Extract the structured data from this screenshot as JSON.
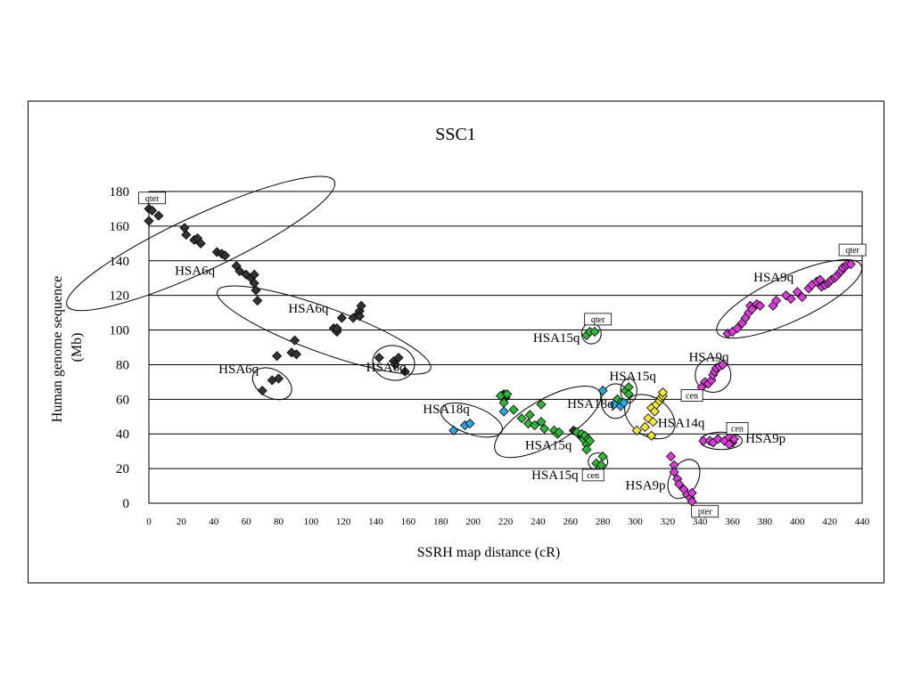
{
  "chart_data": {
    "type": "scatter",
    "title": "SSC1",
    "xlabel": "SSRH map distance (cR)",
    "ylabel": [
      "Human genome sequence",
      "(Mb)"
    ],
    "xlim": [
      0,
      440
    ],
    "ylim": [
      0,
      180
    ],
    "xticks": [
      0,
      20,
      40,
      60,
      80,
      100,
      120,
      140,
      160,
      180,
      200,
      220,
      240,
      260,
      280,
      300,
      320,
      340,
      360,
      380,
      400,
      420,
      440
    ],
    "yticks": [
      0,
      20,
      40,
      60,
      80,
      100,
      120,
      140,
      160,
      180
    ],
    "grid": "horizontal",
    "legend": "none",
    "series": [
      {
        "color": "#333333",
        "points": [
          [
            0,
            170
          ],
          [
            0,
            163
          ],
          [
            2,
            169
          ],
          [
            6,
            166
          ],
          [
            22,
            159
          ],
          [
            23,
            155
          ],
          [
            28,
            152
          ],
          [
            30,
            153
          ],
          [
            32,
            150
          ],
          [
            42,
            145
          ],
          [
            45,
            144
          ],
          [
            47,
            143
          ],
          [
            54,
            137
          ],
          [
            56,
            134
          ],
          [
            60,
            132
          ],
          [
            63,
            130
          ],
          [
            65,
            132
          ],
          [
            65,
            127
          ],
          [
            66,
            123
          ],
          [
            67,
            117
          ],
          [
            79,
            85
          ],
          [
            88,
            87
          ],
          [
            90,
            94
          ],
          [
            91,
            86
          ],
          [
            114,
            101
          ],
          [
            116,
            99
          ],
          [
            116,
            101
          ],
          [
            119,
            107
          ],
          [
            126,
            107
          ],
          [
            129,
            109
          ],
          [
            130,
            111
          ],
          [
            131,
            114
          ],
          [
            130,
            108
          ],
          [
            70,
            65
          ],
          [
            76,
            71
          ],
          [
            80,
            72
          ],
          [
            142,
            84
          ],
          [
            151,
            82
          ],
          [
            152,
            80
          ],
          [
            154,
            84
          ],
          [
            158,
            76
          ],
          [
            219,
            63
          ],
          [
            220,
            61
          ],
          [
            262,
            42
          ],
          [
            265,
            40
          ]
        ]
      },
      {
        "color": "#32b33a",
        "points": [
          [
            217,
            62
          ],
          [
            219,
            58
          ],
          [
            221,
            63
          ],
          [
            225,
            54
          ],
          [
            230,
            49
          ],
          [
            234,
            46
          ],
          [
            235,
            51
          ],
          [
            238,
            45
          ],
          [
            242,
            47
          ],
          [
            242,
            57
          ],
          [
            244,
            43
          ],
          [
            250,
            42
          ],
          [
            252,
            40
          ],
          [
            253,
            41
          ],
          [
            264,
            41
          ],
          [
            267,
            40
          ],
          [
            268,
            37
          ],
          [
            269,
            39
          ],
          [
            270,
            34
          ],
          [
            270,
            31
          ],
          [
            271,
            37
          ],
          [
            272,
            36
          ],
          [
            270,
            97
          ],
          [
            272,
            99
          ],
          [
            275,
            99
          ],
          [
            276,
            23
          ],
          [
            279,
            22
          ],
          [
            280,
            27
          ],
          [
            289,
            60
          ],
          [
            291,
            58
          ],
          [
            294,
            65
          ],
          [
            296,
            67
          ],
          [
            296,
            63
          ]
        ]
      },
      {
        "color": "#29a9e0",
        "points": [
          [
            188,
            42
          ],
          [
            195,
            45
          ],
          [
            198,
            46
          ],
          [
            219,
            53
          ],
          [
            280,
            65
          ],
          [
            287,
            57
          ],
          [
            291,
            56
          ],
          [
            293,
            58
          ]
        ]
      },
      {
        "color": "#f2e73d",
        "points": [
          [
            301,
            42
          ],
          [
            306,
            44
          ],
          [
            308,
            49
          ],
          [
            310,
            55
          ],
          [
            310,
            39
          ],
          [
            311,
            47
          ],
          [
            312,
            53
          ],
          [
            313,
            57
          ],
          [
            315,
            59
          ],
          [
            316,
            61
          ],
          [
            317,
            62
          ],
          [
            317,
            64
          ]
        ]
      },
      {
        "color": "#d63ed6",
        "points": [
          [
            322,
            27
          ],
          [
            324,
            22
          ],
          [
            324,
            18
          ],
          [
            326,
            14
          ],
          [
            327,
            11
          ],
          [
            330,
            8
          ],
          [
            332,
            5
          ],
          [
            334,
            3
          ],
          [
            335,
            1
          ],
          [
            335,
            6
          ],
          [
            341,
            67
          ],
          [
            343,
            70
          ],
          [
            345,
            69
          ],
          [
            347,
            71
          ],
          [
            348,
            74
          ],
          [
            349,
            76
          ],
          [
            350,
            78
          ],
          [
            352,
            79
          ],
          [
            354,
            80
          ],
          [
            342,
            36
          ],
          [
            346,
            36
          ],
          [
            348,
            35
          ],
          [
            351,
            37
          ],
          [
            355,
            36
          ],
          [
            358,
            38
          ],
          [
            360,
            35
          ],
          [
            361,
            37
          ],
          [
            358,
            34
          ],
          [
            357,
            98
          ],
          [
            360,
            99
          ],
          [
            363,
            101
          ],
          [
            366,
            104
          ],
          [
            368,
            107
          ],
          [
            370,
            110
          ],
          [
            371,
            114
          ],
          [
            372,
            112
          ],
          [
            375,
            115
          ],
          [
            377,
            114
          ],
          [
            385,
            114
          ],
          [
            387,
            117
          ],
          [
            393,
            120
          ],
          [
            396,
            118
          ],
          [
            400,
            122
          ],
          [
            403,
            119
          ],
          [
            407,
            124
          ],
          [
            409,
            126
          ],
          [
            412,
            128
          ],
          [
            414,
            129
          ],
          [
            415,
            125
          ],
          [
            417,
            126
          ],
          [
            419,
            127
          ],
          [
            420,
            128
          ],
          [
            421,
            129
          ],
          [
            423,
            130
          ],
          [
            424,
            131
          ],
          [
            426,
            133
          ],
          [
            427,
            134
          ],
          [
            428,
            136
          ],
          [
            430,
            137
          ],
          [
            431,
            138
          ],
          [
            433,
            138
          ]
        ]
      }
    ],
    "annotations": {
      "groups": [
        {
          "label": "HSA6q",
          "x": 16,
          "y": 132
        },
        {
          "label": "HSA6q",
          "x": 86,
          "y": 110
        },
        {
          "label": "HSA6q",
          "x": 43,
          "y": 75
        },
        {
          "label": "HSA6q",
          "x": 134,
          "y": 76
        },
        {
          "label": "HSA15q",
          "x": 237,
          "y": 93
        },
        {
          "label": "HSA18q",
          "x": 169,
          "y": 52
        },
        {
          "label": "HSA18q",
          "x": 258,
          "y": 55
        },
        {
          "label": "HSA15q",
          "x": 284,
          "y": 71
        },
        {
          "label": "HSA15q",
          "x": 232,
          "y": 31
        },
        {
          "label": "HSA15q",
          "x": 236,
          "y": 14
        },
        {
          "label": "HSA14q",
          "x": 314,
          "y": 44
        },
        {
          "label": "HSA9q",
          "x": 333,
          "y": 82
        },
        {
          "label": "HSA9q",
          "x": 373,
          "y": 128
        },
        {
          "label": "HSA9p",
          "x": 294,
          "y": 8
        },
        {
          "label": "HSA9p",
          "x": 368,
          "y": 35
        }
      ],
      "tags": [
        {
          "label": "qter",
          "x": 2,
          "y": 176
        },
        {
          "label": "qter",
          "x": 277,
          "y": 106
        },
        {
          "label": "qter",
          "x": 434,
          "y": 146
        },
        {
          "label": "cen",
          "x": 274,
          "y": 16
        },
        {
          "label": "cen",
          "x": 335,
          "y": 62
        },
        {
          "label": "cen",
          "x": 363,
          "y": 43
        },
        {
          "label": "pter",
          "x": 343,
          "y": -5
        }
      ]
    },
    "ellipses": [
      {
        "cx": 32,
        "cy": 150,
        "rx": 91,
        "ry": 16,
        "angle": -25
      },
      {
        "cx": 108,
        "cy": 100,
        "rx": 70,
        "ry": 13,
        "angle": 20
      },
      {
        "cx": 76,
        "cy": 69,
        "rx": 13,
        "ry": 8,
        "angle": 30
      },
      {
        "cx": 151,
        "cy": 81,
        "rx": 13,
        "ry": 10,
        "angle": 10
      },
      {
        "cx": 273,
        "cy": 98,
        "rx": 6,
        "ry": 6,
        "angle": 0
      },
      {
        "cx": 199,
        "cy": 48,
        "rx": 20,
        "ry": 8,
        "angle": 20
      },
      {
        "cx": 246,
        "cy": 47,
        "rx": 37,
        "ry": 13,
        "angle": -30
      },
      {
        "cx": 288,
        "cy": 59,
        "rx": 9,
        "ry": 10,
        "angle": 0
      },
      {
        "cx": 296,
        "cy": 65,
        "rx": 5,
        "ry": 7,
        "angle": 0
      },
      {
        "cx": 309,
        "cy": 50,
        "rx": 17,
        "ry": 11,
        "angle": 35
      },
      {
        "cx": 277,
        "cy": 24,
        "rx": 6,
        "ry": 5,
        "angle": 0
      },
      {
        "cx": 330,
        "cy": 14,
        "rx": 13,
        "ry": 8,
        "angle": -60
      },
      {
        "cx": 348,
        "cy": 74,
        "rx": 11,
        "ry": 10,
        "angle": 0
      },
      {
        "cx": 353,
        "cy": 36,
        "rx": 13,
        "ry": 5,
        "angle": 0
      },
      {
        "cx": 395,
        "cy": 118,
        "rx": 49,
        "ry": 13,
        "angle": -25
      }
    ]
  }
}
